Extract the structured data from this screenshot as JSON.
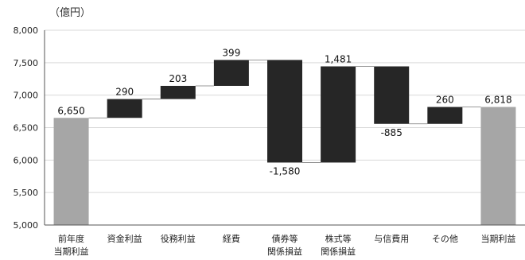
{
  "chart_data": {
    "type": "waterfall",
    "unit_label": "（億円）",
    "categories": [
      [
        "前年度",
        "当期利益"
      ],
      [
        "資金利益"
      ],
      [
        "役務利益"
      ],
      [
        "経費"
      ],
      [
        "債券等",
        "関係損益"
      ],
      [
        "株式等",
        "関係損益"
      ],
      [
        "与信費用"
      ],
      [
        "その他"
      ],
      [
        "当期利益"
      ]
    ],
    "values": [
      6650,
      290,
      203,
      399,
      -1580,
      1481,
      -885,
      260,
      6818
    ],
    "kinds": [
      "total",
      "delta",
      "delta",
      "delta",
      "delta",
      "delta",
      "delta",
      "delta",
      "total"
    ],
    "data_labels": [
      "6,650",
      "290",
      "203",
      "399",
      "-1,580",
      "1,481",
      "-885",
      "260",
      "6,818"
    ],
    "ylim": [
      5000,
      8000
    ],
    "y_ticks": [
      5000,
      5500,
      6000,
      6500,
      7000,
      7500,
      8000
    ],
    "y_tick_labels": [
      "5,000",
      "5,500",
      "6,000",
      "6,500",
      "7,000",
      "7,500",
      "8,000"
    ],
    "grid": true,
    "colors": {
      "total": "#a6a6a6",
      "delta": "#262626"
    }
  }
}
